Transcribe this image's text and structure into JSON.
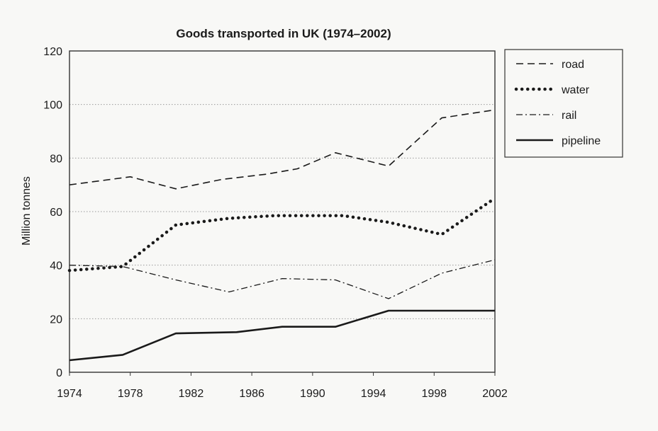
{
  "chart_data": {
    "type": "line",
    "title": "Goods transported in UK (1974–2002)",
    "xlabel": "",
    "ylabel": "Million tonnes",
    "xlim": [
      1974,
      2002
    ],
    "ylim": [
      0,
      120
    ],
    "x_ticks": [
      "1974",
      "1978",
      "1982",
      "1986",
      "1990",
      "1994",
      "1998",
      "2002"
    ],
    "y_ticks": [
      "0",
      "20",
      "40",
      "60",
      "80",
      "100",
      "120"
    ],
    "grid": "horizontal dotted",
    "legend_position": "right",
    "series": [
      {
        "name": "road",
        "style": "dashed",
        "points": [
          [
            1974,
            70
          ],
          [
            1978,
            73
          ],
          [
            1981,
            68.5
          ],
          [
            1984,
            72
          ],
          [
            1987,
            74
          ],
          [
            1989,
            76
          ],
          [
            1991.5,
            82
          ],
          [
            1995,
            77
          ],
          [
            1998.5,
            95
          ],
          [
            2002,
            98
          ]
        ]
      },
      {
        "name": "water",
        "style": "dotted",
        "points": [
          [
            1974,
            38
          ],
          [
            1977.5,
            39.5
          ],
          [
            1981,
            55
          ],
          [
            1984.5,
            57.5
          ],
          [
            1987.5,
            58.5
          ],
          [
            1990,
            58.5
          ],
          [
            1992,
            58.5
          ],
          [
            1995,
            56
          ],
          [
            1998.5,
            51.5
          ],
          [
            2002,
            65
          ]
        ]
      },
      {
        "name": "rail",
        "style": "dash-dot",
        "points": [
          [
            1974,
            40
          ],
          [
            1977.5,
            39.5
          ],
          [
            1981,
            34.5
          ],
          [
            1984.5,
            30
          ],
          [
            1988,
            35
          ],
          [
            1991.5,
            34.5
          ],
          [
            1995,
            27.5
          ],
          [
            1998.5,
            37
          ],
          [
            2002,
            42
          ]
        ]
      },
      {
        "name": "pipeline",
        "style": "solid",
        "points": [
          [
            1974,
            4.5
          ],
          [
            1977.5,
            6.5
          ],
          [
            1981,
            14.5
          ],
          [
            1985,
            15
          ],
          [
            1988,
            17
          ],
          [
            1991.5,
            17
          ],
          [
            1995,
            23
          ],
          [
            2002,
            23
          ]
        ]
      }
    ]
  }
}
